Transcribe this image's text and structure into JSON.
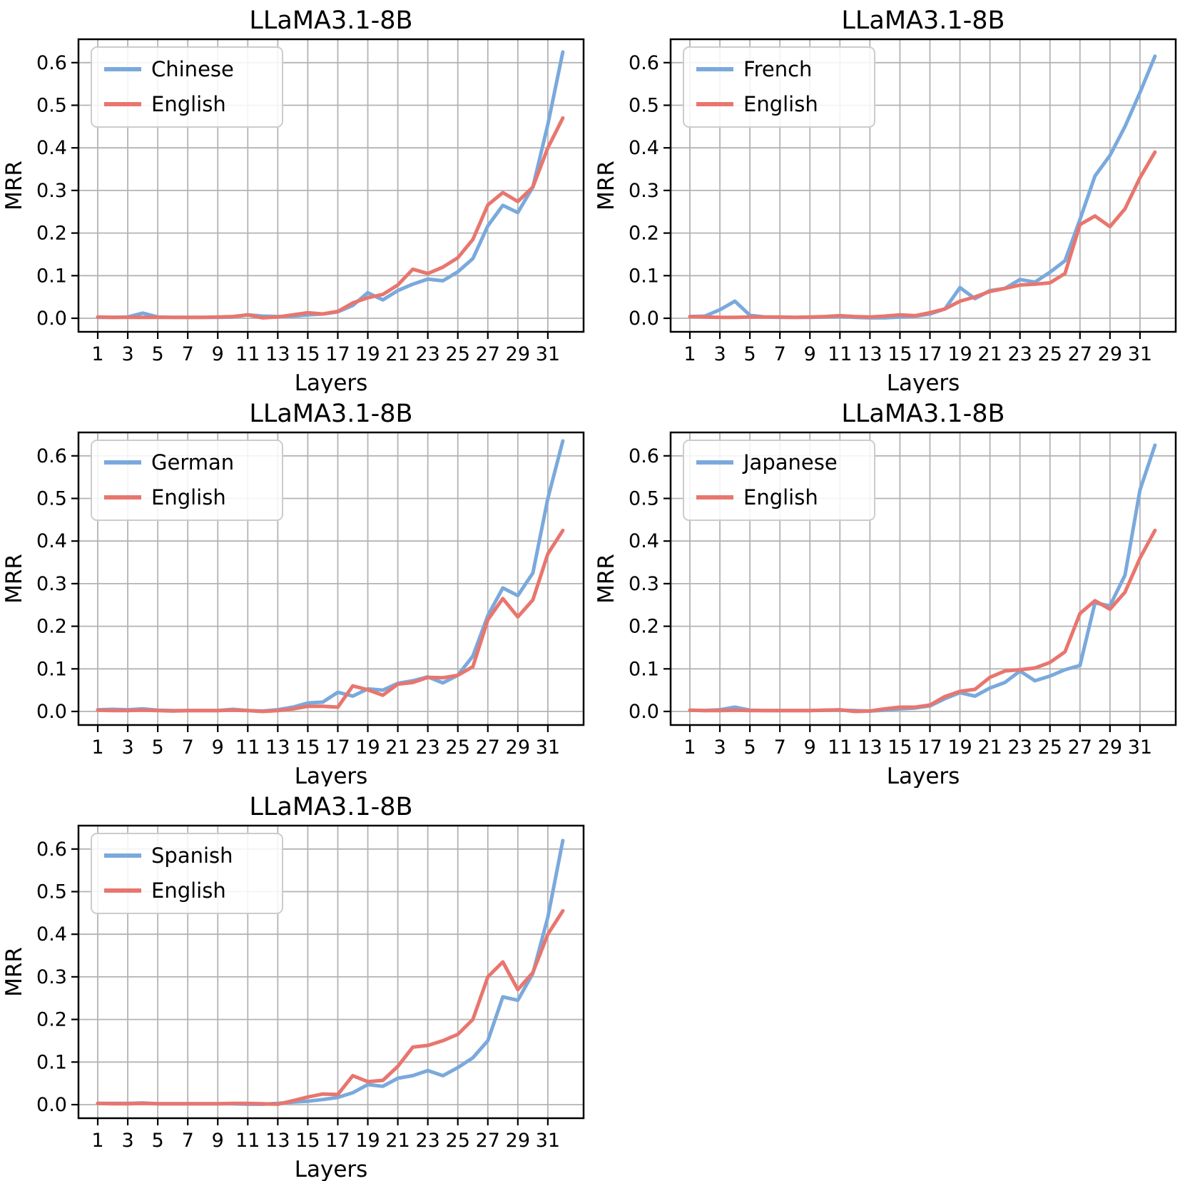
{
  "figure": {
    "title": "LLaMA3.1-8B",
    "colors": {
      "target_line": "#7aa9dc",
      "english_line": "#e8766e",
      "grid": "#b3b3b3",
      "spine": "#000000",
      "legend_border": "#cccccc",
      "text": "#000000"
    },
    "axis": {
      "xlabel": "Layers",
      "ylabel": "MRR",
      "x_tick_labels": [
        "1",
        "3",
        "5",
        "7",
        "9",
        "11",
        "13",
        "15",
        "17",
        "19",
        "21",
        "23",
        "25",
        "27",
        "29",
        "31"
      ],
      "y_tick_labels": [
        "0.0",
        "0.1",
        "0.2",
        "0.3",
        "0.4",
        "0.5",
        "0.6"
      ]
    }
  },
  "chart_data": [
    {
      "type": "line",
      "title": "LLaMA3.1-8B",
      "xlabel": "Layers",
      "ylabel": "MRR",
      "xlim": [
        -0.3,
        33.4
      ],
      "ylim": [
        -0.032,
        0.654
      ],
      "grid": true,
      "legend_position": "upper left",
      "x": [
        1,
        2,
        3,
        4,
        5,
        6,
        7,
        8,
        9,
        10,
        11,
        12,
        13,
        14,
        15,
        16,
        17,
        18,
        19,
        20,
        21,
        22,
        23,
        24,
        25,
        26,
        27,
        28,
        29,
        30,
        31,
        32
      ],
      "series": [
        {
          "name": "Chinese",
          "color": "#7aa9dc",
          "values": [
            0.002,
            0.002,
            0.003,
            0.012,
            0.003,
            0.002,
            0.002,
            0.002,
            0.002,
            0.003,
            0.008,
            0.005,
            0.004,
            0.005,
            0.008,
            0.01,
            0.015,
            0.03,
            0.06,
            0.043,
            0.065,
            0.08,
            0.092,
            0.088,
            0.109,
            0.14,
            0.217,
            0.265,
            0.248,
            0.308,
            0.455,
            0.625
          ]
        },
        {
          "name": "English",
          "color": "#e8766e",
          "values": [
            0.003,
            0.002,
            0.002,
            0.002,
            0.002,
            0.002,
            0.002,
            0.002,
            0.003,
            0.004,
            0.008,
            0.001,
            0.003,
            0.008,
            0.013,
            0.01,
            0.016,
            0.036,
            0.048,
            0.056,
            0.078,
            0.115,
            0.105,
            0.12,
            0.142,
            0.185,
            0.266,
            0.295,
            0.274,
            0.308,
            0.4,
            0.47
          ]
        }
      ]
    },
    {
      "type": "line",
      "title": "LLaMA3.1-8B",
      "xlabel": "Layers",
      "ylabel": "MRR",
      "xlim": [
        -0.3,
        33.4
      ],
      "ylim": [
        -0.032,
        0.654
      ],
      "grid": true,
      "legend_position": "upper left",
      "x": [
        1,
        2,
        3,
        4,
        5,
        6,
        7,
        8,
        9,
        10,
        11,
        12,
        13,
        14,
        15,
        16,
        17,
        18,
        19,
        20,
        21,
        22,
        23,
        24,
        25,
        26,
        27,
        28,
        29,
        30,
        31,
        32
      ],
      "series": [
        {
          "name": "French",
          "color": "#7aa9dc",
          "values": [
            0.004,
            0.005,
            0.02,
            0.04,
            0.007,
            0.003,
            0.002,
            0.002,
            0.002,
            0.003,
            0.004,
            0.002,
            0.001,
            0.001,
            0.003,
            0.005,
            0.01,
            0.022,
            0.072,
            0.046,
            0.065,
            0.07,
            0.091,
            0.085,
            0.108,
            0.135,
            0.232,
            0.334,
            0.382,
            0.45,
            0.53,
            0.615
          ]
        },
        {
          "name": "English",
          "color": "#e8766e",
          "values": [
            0.004,
            0.003,
            0.002,
            0.002,
            0.003,
            0.003,
            0.003,
            0.002,
            0.003,
            0.004,
            0.006,
            0.004,
            0.003,
            0.005,
            0.008,
            0.006,
            0.013,
            0.022,
            0.04,
            0.05,
            0.063,
            0.07,
            0.078,
            0.08,
            0.083,
            0.105,
            0.22,
            0.24,
            0.215,
            0.257,
            0.33,
            0.39
          ]
        }
      ]
    },
    {
      "type": "line",
      "title": "LLaMA3.1-8B",
      "xlabel": "Layers",
      "ylabel": "MRR",
      "xlim": [
        -0.3,
        33.4
      ],
      "ylim": [
        -0.032,
        0.654
      ],
      "grid": true,
      "legend_position": "upper left",
      "x": [
        1,
        2,
        3,
        4,
        5,
        6,
        7,
        8,
        9,
        10,
        11,
        12,
        13,
        14,
        15,
        16,
        17,
        18,
        19,
        20,
        21,
        22,
        23,
        24,
        25,
        26,
        27,
        28,
        29,
        30,
        31,
        32
      ],
      "series": [
        {
          "name": "German",
          "color": "#7aa9dc",
          "values": [
            0.004,
            0.005,
            0.004,
            0.006,
            0.003,
            0.002,
            0.002,
            0.002,
            0.002,
            0.005,
            0.002,
            0.001,
            0.004,
            0.01,
            0.02,
            0.022,
            0.045,
            0.036,
            0.053,
            0.05,
            0.066,
            0.072,
            0.081,
            0.067,
            0.085,
            0.13,
            0.225,
            0.29,
            0.272,
            0.325,
            0.5,
            0.635
          ]
        },
        {
          "name": "English",
          "color": "#e8766e",
          "values": [
            0.003,
            0.002,
            0.002,
            0.003,
            0.002,
            0.001,
            0.002,
            0.002,
            0.002,
            0.003,
            0.002,
            0.0,
            0.002,
            0.006,
            0.012,
            0.012,
            0.01,
            0.06,
            0.051,
            0.038,
            0.064,
            0.068,
            0.08,
            0.079,
            0.085,
            0.105,
            0.215,
            0.265,
            0.222,
            0.262,
            0.37,
            0.425
          ]
        }
      ]
    },
    {
      "type": "line",
      "title": "LLaMA3.1-8B",
      "xlabel": "Layers",
      "ylabel": "MRR",
      "xlim": [
        -0.3,
        33.4
      ],
      "ylim": [
        -0.032,
        0.654
      ],
      "grid": true,
      "legend_position": "upper left",
      "x": [
        1,
        2,
        3,
        4,
        5,
        6,
        7,
        8,
        9,
        10,
        11,
        12,
        13,
        14,
        15,
        16,
        17,
        18,
        19,
        20,
        21,
        22,
        23,
        24,
        25,
        26,
        27,
        28,
        29,
        30,
        31,
        32
      ],
      "series": [
        {
          "name": "Japanese",
          "color": "#7aa9dc",
          "values": [
            0.003,
            0.002,
            0.004,
            0.01,
            0.003,
            0.002,
            0.002,
            0.002,
            0.002,
            0.003,
            0.003,
            0.002,
            0.001,
            0.003,
            0.006,
            0.008,
            0.013,
            0.03,
            0.044,
            0.036,
            0.055,
            0.068,
            0.095,
            0.072,
            0.083,
            0.098,
            0.108,
            0.255,
            0.248,
            0.32,
            0.52,
            0.625
          ]
        },
        {
          "name": "English",
          "color": "#e8766e",
          "values": [
            0.003,
            0.002,
            0.002,
            0.003,
            0.002,
            0.002,
            0.002,
            0.002,
            0.002,
            0.003,
            0.004,
            0.0,
            0.001,
            0.006,
            0.01,
            0.01,
            0.015,
            0.035,
            0.047,
            0.052,
            0.08,
            0.095,
            0.098,
            0.102,
            0.115,
            0.14,
            0.23,
            0.26,
            0.24,
            0.28,
            0.36,
            0.425
          ]
        }
      ]
    },
    {
      "type": "line",
      "title": "LLaMA3.1-8B",
      "xlabel": "Layers",
      "ylabel": "MRR",
      "xlim": [
        -0.3,
        33.4
      ],
      "ylim": [
        -0.032,
        0.654
      ],
      "grid": true,
      "legend_position": "upper left",
      "x": [
        1,
        2,
        3,
        4,
        5,
        6,
        7,
        8,
        9,
        10,
        11,
        12,
        13,
        14,
        15,
        16,
        17,
        18,
        19,
        20,
        21,
        22,
        23,
        24,
        25,
        26,
        27,
        28,
        29,
        30,
        31,
        32
      ],
      "series": [
        {
          "name": "Spanish",
          "color": "#7aa9dc",
          "values": [
            0.003,
            0.003,
            0.003,
            0.004,
            0.002,
            0.002,
            0.002,
            0.002,
            0.002,
            0.002,
            0.001,
            0.001,
            0.003,
            0.006,
            0.008,
            0.012,
            0.017,
            0.028,
            0.047,
            0.043,
            0.062,
            0.068,
            0.08,
            0.068,
            0.087,
            0.11,
            0.15,
            0.253,
            0.245,
            0.308,
            0.44,
            0.62
          ]
        },
        {
          "name": "English",
          "color": "#e8766e",
          "values": [
            0.003,
            0.002,
            0.002,
            0.003,
            0.002,
            0.002,
            0.002,
            0.002,
            0.002,
            0.003,
            0.003,
            0.002,
            0.001,
            0.009,
            0.018,
            0.025,
            0.024,
            0.068,
            0.054,
            0.057,
            0.09,
            0.135,
            0.139,
            0.15,
            0.165,
            0.2,
            0.3,
            0.335,
            0.27,
            0.31,
            0.4,
            0.455
          ]
        }
      ]
    }
  ]
}
